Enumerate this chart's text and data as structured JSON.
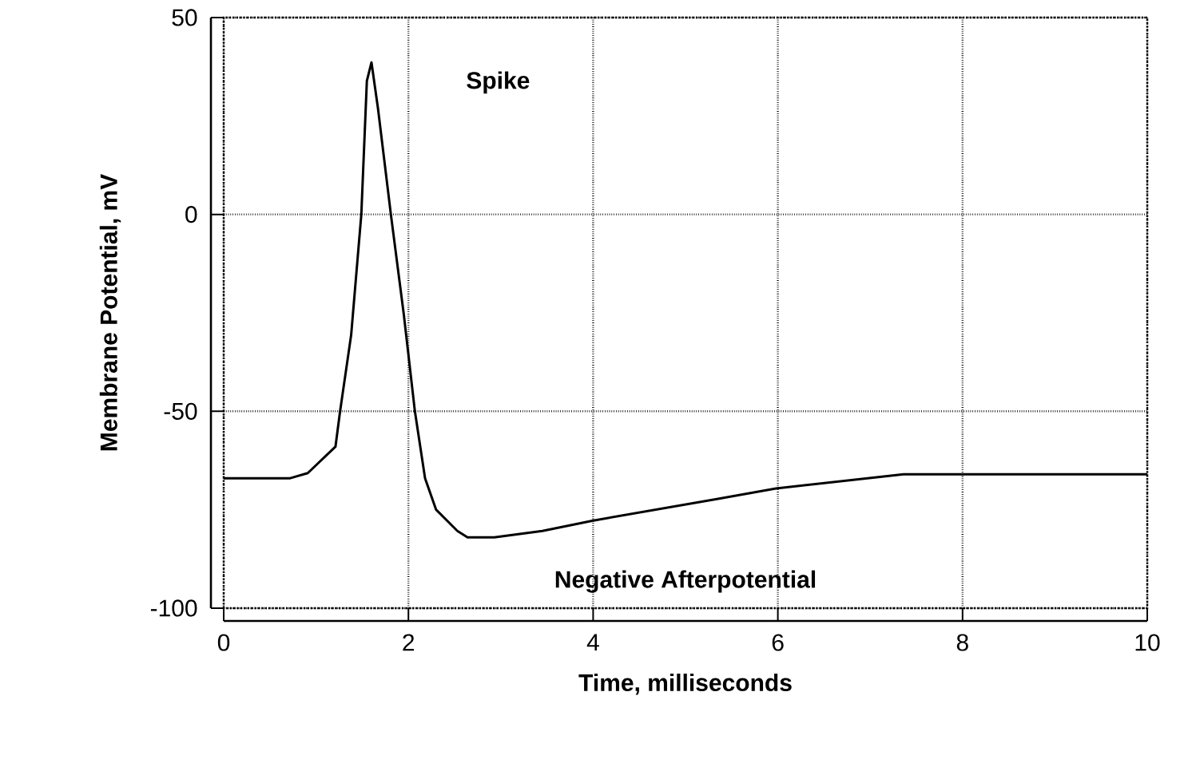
{
  "chart_data": {
    "type": "line",
    "xlabel": "Time, milliseconds",
    "ylabel": "Membrane Potential, mV",
    "x": [
      0,
      0.72,
      0.91,
      1.21,
      1.26,
      1.38,
      1.49,
      1.55,
      1.6,
      1.67,
      1.81,
      1.95,
      2.07,
      2.18,
      2.3,
      2.53,
      2.64,
      2.93,
      3.45,
      3.99,
      5.34,
      5.98,
      7.36,
      10
    ],
    "values": [
      -67,
      -67,
      -65.7,
      -59,
      -50,
      -30.6,
      0,
      33.9,
      38.6,
      27,
      0,
      -25.4,
      -50,
      -67,
      -75,
      -80.4,
      -82,
      -82,
      -80.4,
      -77.8,
      -72.3,
      -69.6,
      -66,
      -66
    ],
    "color": "#000000",
    "xlim": [
      0,
      10
    ],
    "ylim": [
      -100,
      50
    ],
    "xticks": [
      0,
      2,
      4,
      6,
      8,
      10
    ],
    "yticks": [
      -100,
      -50,
      0,
      50
    ],
    "grid": true,
    "line_style": "solid",
    "marker": "none",
    "annotations": [
      "Spike",
      "Negative Afterpotential"
    ]
  }
}
